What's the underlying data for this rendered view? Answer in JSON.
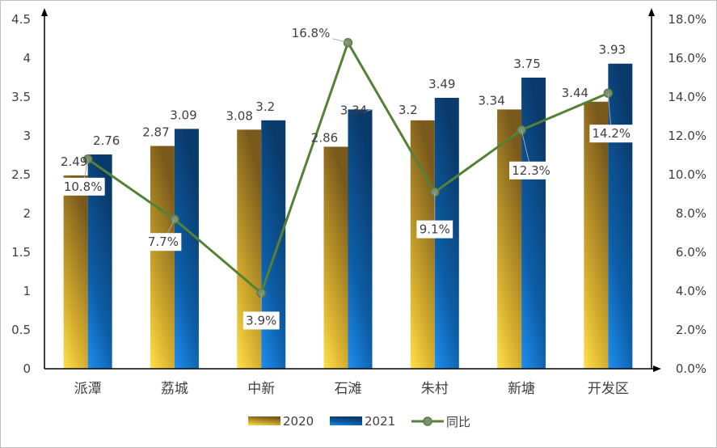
{
  "chart_data": {
    "type": "bar",
    "categories": [
      "派潭",
      "荔城",
      "中新",
      "石滩",
      "朱村",
      "新塘",
      "开发区"
    ],
    "series": [
      {
        "name": "2020",
        "type": "bar",
        "axis": "left",
        "values": [
          2.49,
          2.87,
          3.08,
          2.86,
          3.2,
          3.34,
          3.44
        ],
        "labels": [
          "2.49",
          "2.87",
          "3.08",
          "2.86",
          "3.2",
          "3.34",
          "3.44"
        ],
        "color": "#c9a227"
      },
      {
        "name": "2021",
        "type": "bar",
        "axis": "left",
        "values": [
          2.76,
          3.09,
          3.2,
          3.34,
          3.49,
          3.75,
          3.93
        ],
        "labels": [
          "2.76",
          "3.09",
          "3.2",
          "3.34",
          "3.49",
          "3.75",
          "3.93"
        ],
        "color": "#0b4f8a"
      },
      {
        "name": "同比",
        "type": "line",
        "axis": "right",
        "values": [
          10.8,
          7.7,
          3.9,
          16.8,
          9.1,
          12.3,
          14.2
        ],
        "labels": [
          "10.8%",
          "7.7%",
          "3.9%",
          "16.8%",
          "9.1%",
          "12.3%",
          "14.2%"
        ],
        "color": "#548235"
      }
    ],
    "y_left": {
      "min": 0,
      "max": 4.5,
      "ticks": [
        "0",
        "0.5",
        "1",
        "1.5",
        "2",
        "2.5",
        "3",
        "3.5",
        "4",
        "4.5"
      ]
    },
    "y_right": {
      "min": 0,
      "max": 18,
      "ticks": [
        "0.0%",
        "2.0%",
        "4.0%",
        "6.0%",
        "8.0%",
        "10.0%",
        "12.0%",
        "14.0%",
        "16.0%",
        "18.0%"
      ]
    },
    "legend": {
      "position": "bottom",
      "entries": [
        "2020",
        "2021",
        "同比"
      ]
    },
    "grid": false
  }
}
